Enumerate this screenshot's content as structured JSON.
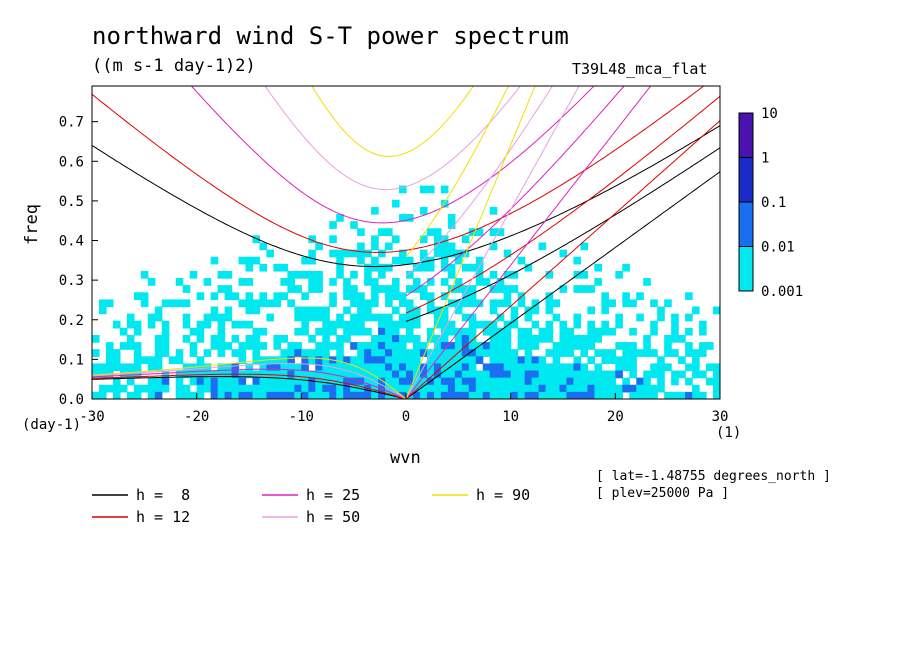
{
  "chart_data": {
    "type": "heatmap",
    "title": "northward wind S-T power spectrum",
    "subtitle": "((m s-1 day-1)2)",
    "run_label": "T39L48_mca_flat",
    "xlabel": "wvn",
    "ylabel": "freq",
    "xunit": "(1)",
    "yunit": "(day-1)",
    "xlim": [
      -30,
      30
    ],
    "ylim": [
      0,
      0.79
    ],
    "xticks": [
      "-30",
      "-20",
      "-10",
      "0",
      "10",
      "20",
      "30"
    ],
    "xtick_values": [
      -30,
      -20,
      -10,
      0,
      10,
      20,
      30
    ],
    "yticks": [
      "0.0",
      "0.1",
      "0.2",
      "0.3",
      "0.4",
      "0.5",
      "0.6",
      "0.7"
    ],
    "ytick_values": [
      0,
      0.1,
      0.2,
      0.3,
      0.4,
      0.5,
      0.6,
      0.7
    ],
    "colorbar": {
      "levels": [
        "0.001",
        "0.01",
        "0.1",
        "1",
        "10"
      ],
      "colors": [
        "#00e8f0",
        "#1a6ef0",
        "#1a2cc8",
        "#4a12b0"
      ]
    },
    "series": [
      {
        "name": "h =  8",
        "equivalent_depth": 8,
        "color": "#000000"
      },
      {
        "name": "h = 12",
        "equivalent_depth": 12,
        "color": "#e00000"
      },
      {
        "name": "h = 25",
        "equivalent_depth": 25,
        "color": "#e020c0"
      },
      {
        "name": "h = 50",
        "equivalent_depth": 50,
        "color": "#e8a0e0"
      },
      {
        "name": "h = 90",
        "equivalent_depth": 90,
        "color": "#f0e000"
      }
    ],
    "annotations": [
      "[ lat=-1.48755 degrees_north ]",
      "[ plev=25000 Pa ]"
    ],
    "legend_position": "bottom"
  }
}
